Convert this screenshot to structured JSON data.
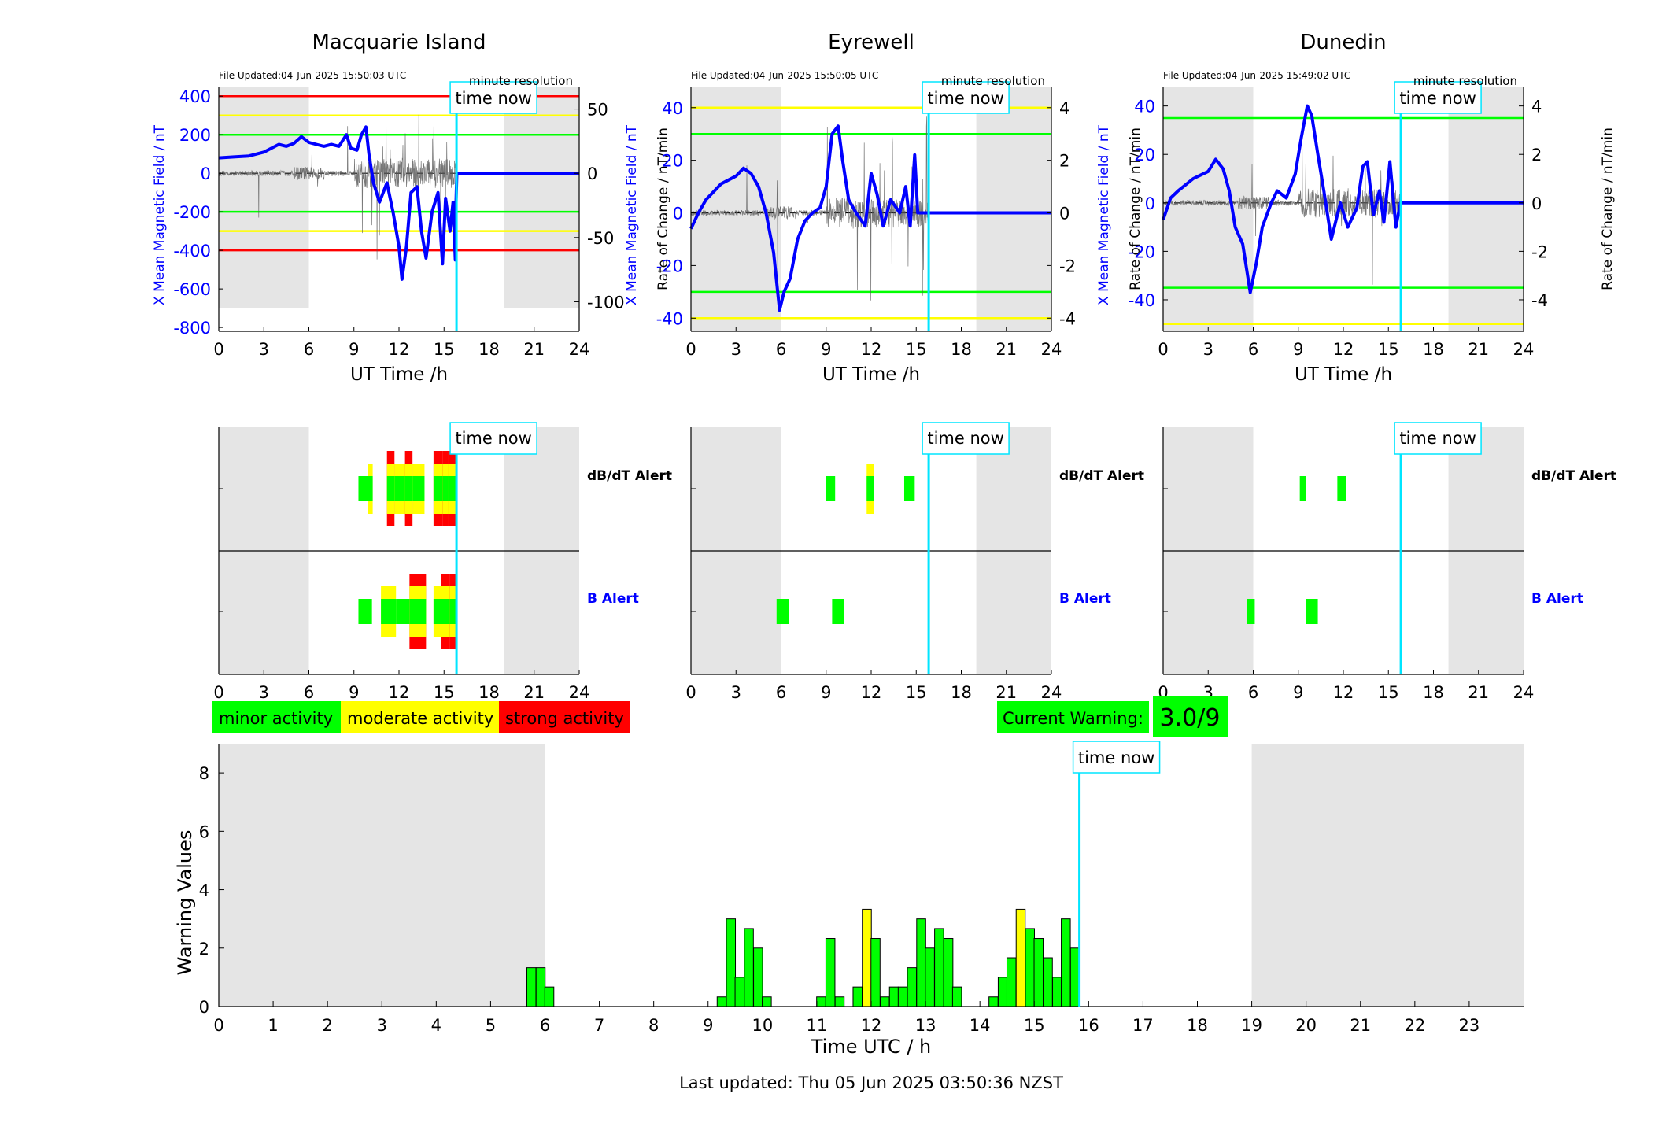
{
  "page": {
    "last_updated": "Last updated: Thu 05 Jun 2025 03:50:36 NZST",
    "time_now_label": "time now",
    "current_warning_label": "Current Warning:",
    "current_warning_value": "3.0/9"
  },
  "legend": [
    {
      "label": "minor activity",
      "color": "#00ff00"
    },
    {
      "label": "moderate activity",
      "color": "#ffff00"
    },
    {
      "label": "strong activity",
      "color": "#ff0000"
    }
  ],
  "colors": {
    "field": "#0000ff",
    "rate": "#555555",
    "now_line": "#00e5ff",
    "night_shade": "#e5e5e5",
    "green": "#00ff00",
    "yellow": "#ffff00",
    "red": "#ff0000"
  },
  "time_now_h": 15.83,
  "stations": [
    {
      "name": "Macquarie Island",
      "file_updated": "File Updated:04-Jun-2025 15:50:03 UTC",
      "resolution": "minute resolution",
      "ylabel_left": "X Mean Magnetic Field / nT",
      "ylabel_right": "Rate of Change / nT/min",
      "xlabel": "UT Time /h",
      "ylim": [
        -820,
        450
      ],
      "yticks": [
        -800,
        -600,
        -400,
        -200,
        0,
        200,
        400
      ],
      "y2lim": [
        -123,
        67.5
      ],
      "y2ticks": [
        -100,
        -50,
        0,
        50
      ],
      "night": [
        [
          0,
          6
        ],
        [
          19,
          24
        ]
      ],
      "night_range": [
        -700,
        450
      ],
      "thresholds": [
        {
          "y": 400,
          "color": "#ff0000"
        },
        {
          "y": 300,
          "color": "#ffff00"
        },
        {
          "y": 200,
          "color": "#00ff00"
        },
        {
          "y": -200,
          "color": "#00ff00"
        },
        {
          "y": -300,
          "color": "#ffff00"
        },
        {
          "y": -400,
          "color": "#ff0000"
        }
      ],
      "field": [
        [
          0,
          80
        ],
        [
          1,
          85
        ],
        [
          2,
          90
        ],
        [
          3,
          110
        ],
        [
          3.5,
          130
        ],
        [
          4,
          150
        ],
        [
          4.5,
          140
        ],
        [
          5,
          155
        ],
        [
          5.5,
          190
        ],
        [
          6,
          160
        ],
        [
          6.5,
          150
        ],
        [
          7,
          140
        ],
        [
          7.5,
          150
        ],
        [
          8,
          140
        ],
        [
          8.5,
          200
        ],
        [
          8.8,
          130
        ],
        [
          9.2,
          120
        ],
        [
          9.5,
          200
        ],
        [
          9.8,
          240
        ],
        [
          10,
          100
        ],
        [
          10.3,
          -50
        ],
        [
          10.7,
          -150
        ],
        [
          11.2,
          -50
        ],
        [
          11.6,
          -200
        ],
        [
          12,
          -380
        ],
        [
          12.2,
          -550
        ],
        [
          12.5,
          -380
        ],
        [
          12.8,
          -100
        ],
        [
          13.2,
          -70
        ],
        [
          13.5,
          -300
        ],
        [
          13.8,
          -440
        ],
        [
          14.2,
          -200
        ],
        [
          14.6,
          -100
        ],
        [
          14.9,
          -470
        ],
        [
          15.1,
          -130
        ],
        [
          15.4,
          -300
        ],
        [
          15.6,
          -150
        ],
        [
          15.75,
          -450
        ],
        [
          15.8,
          -150
        ],
        [
          15.85,
          0
        ],
        [
          24,
          0
        ]
      ],
      "dbdt_alerts": [
        {
          "from": 9.3,
          "to": 10.0,
          "level": 1
        },
        {
          "from": 9.95,
          "to": 10.25,
          "level": 2
        },
        {
          "from": 11.2,
          "to": 11.7,
          "level": 3
        },
        {
          "from": 11.7,
          "to": 12.4,
          "level": 2
        },
        {
          "from": 12.4,
          "to": 12.9,
          "level": 3
        },
        {
          "from": 12.9,
          "to": 13.7,
          "level": 2
        },
        {
          "from": 14.3,
          "to": 14.9,
          "level": 3
        },
        {
          "from": 14.9,
          "to": 15.3,
          "level": 3
        },
        {
          "from": 15.3,
          "to": 15.9,
          "level": 3
        }
      ],
      "b_alerts": [
        {
          "from": 9.3,
          "to": 10.2,
          "level": 1
        },
        {
          "from": 10.8,
          "to": 11.8,
          "level": 2
        },
        {
          "from": 11.8,
          "to": 12.7,
          "level": 1
        },
        {
          "from": 12.7,
          "to": 13.8,
          "level": 3
        },
        {
          "from": 14.3,
          "to": 14.8,
          "level": 2
        },
        {
          "from": 14.8,
          "to": 15.4,
          "level": 3
        },
        {
          "from": 15.4,
          "to": 15.9,
          "level": 3
        }
      ]
    },
    {
      "name": "Eyrewell",
      "file_updated": "File Updated:04-Jun-2025 15:50:05 UTC",
      "resolution": "minute resolution",
      "ylabel_left": "X Mean Magnetic Field / nT",
      "ylabel_right": "Rate of Change / nT/min",
      "xlabel": "UT Time /h",
      "ylim": [
        -45,
        48
      ],
      "yticks": [
        -40,
        -20,
        0,
        20,
        40
      ],
      "y2lim": [
        -4.5,
        4.8
      ],
      "y2ticks": [
        -4,
        -2,
        0,
        2,
        4
      ],
      "night": [
        [
          0,
          6
        ],
        [
          19,
          24
        ]
      ],
      "night_range": [
        -45,
        48
      ],
      "thresholds": [
        {
          "y": 40,
          "color": "#ffff00"
        },
        {
          "y": 30,
          "color": "#00ff00"
        },
        {
          "y": -30,
          "color": "#00ff00"
        },
        {
          "y": -40,
          "color": "#ffff00"
        }
      ],
      "field": [
        [
          0,
          -6
        ],
        [
          0.5,
          0
        ],
        [
          1,
          5
        ],
        [
          2,
          11
        ],
        [
          3,
          14
        ],
        [
          3.5,
          17
        ],
        [
          4,
          15
        ],
        [
          4.5,
          10
        ],
        [
          5,
          0
        ],
        [
          5.5,
          -15
        ],
        [
          5.9,
          -37
        ],
        [
          6.2,
          -30
        ],
        [
          6.6,
          -25
        ],
        [
          7.1,
          -10
        ],
        [
          7.6,
          -3
        ],
        [
          8.1,
          0
        ],
        [
          8.6,
          2
        ],
        [
          9.0,
          10
        ],
        [
          9.4,
          30
        ],
        [
          9.8,
          33
        ],
        [
          10.1,
          20
        ],
        [
          10.5,
          5
        ],
        [
          11.0,
          0
        ],
        [
          11.6,
          -5
        ],
        [
          12.0,
          15
        ],
        [
          12.4,
          7
        ],
        [
          12.8,
          -5
        ],
        [
          13.3,
          5
        ],
        [
          13.9,
          0
        ],
        [
          14.3,
          10
        ],
        [
          14.6,
          -5
        ],
        [
          14.9,
          22
        ],
        [
          15.1,
          0
        ],
        [
          24,
          0
        ]
      ],
      "dbdt_alerts": [
        {
          "from": 9.0,
          "to": 9.6,
          "level": 1
        },
        {
          "from": 11.7,
          "to": 12.2,
          "level": 2
        },
        {
          "from": 14.2,
          "to": 14.9,
          "level": 1
        }
      ],
      "b_alerts": [
        {
          "from": 5.7,
          "to": 6.5,
          "level": 1
        },
        {
          "from": 9.4,
          "to": 10.2,
          "level": 1
        }
      ]
    },
    {
      "name": "Dunedin",
      "file_updated": "File Updated:04-Jun-2025 15:49:02 UTC",
      "resolution": "minute resolution",
      "ylabel_left": "X Mean Magnetic Field / nT",
      "ylabel_right": "Rate of Change / nT/min",
      "xlabel": "UT Time /h",
      "ylim": [
        -53,
        48
      ],
      "yticks": [
        -40,
        -20,
        0,
        20,
        40
      ],
      "y2lim": [
        -5.3,
        4.8
      ],
      "y2ticks": [
        -4,
        -2,
        0,
        2,
        4
      ],
      "night": [
        [
          0,
          6
        ],
        [
          19,
          24
        ]
      ],
      "night_range": [
        -53,
        48
      ],
      "thresholds": [
        {
          "y": 35,
          "color": "#00ff00"
        },
        {
          "y": -35,
          "color": "#00ff00"
        },
        {
          "y": -50,
          "color": "#ffff00"
        }
      ],
      "field": [
        [
          0,
          -7
        ],
        [
          0.5,
          2
        ],
        [
          1,
          5
        ],
        [
          2,
          10
        ],
        [
          3,
          13
        ],
        [
          3.5,
          18
        ],
        [
          4,
          14
        ],
        [
          4.4,
          5
        ],
        [
          4.8,
          -10
        ],
        [
          5.3,
          -17
        ],
        [
          5.8,
          -37
        ],
        [
          6.2,
          -25
        ],
        [
          6.6,
          -10
        ],
        [
          7.2,
          0
        ],
        [
          7.6,
          5
        ],
        [
          8.2,
          2
        ],
        [
          8.8,
          12
        ],
        [
          9.2,
          27
        ],
        [
          9.6,
          40
        ],
        [
          9.9,
          36
        ],
        [
          10.3,
          20
        ],
        [
          10.7,
          5
        ],
        [
          11.2,
          -15
        ],
        [
          11.8,
          0
        ],
        [
          12.3,
          -10
        ],
        [
          12.9,
          -2
        ],
        [
          13.3,
          15
        ],
        [
          13.6,
          17
        ],
        [
          14.0,
          -5
        ],
        [
          14.4,
          5
        ],
        [
          14.7,
          -8
        ],
        [
          15.1,
          17
        ],
        [
          15.5,
          -10
        ],
        [
          15.8,
          0
        ],
        [
          24,
          0
        ]
      ],
      "dbdt_alerts": [
        {
          "from": 9.1,
          "to": 9.5,
          "level": 1
        },
        {
          "from": 11.6,
          "to": 12.2,
          "level": 1
        }
      ],
      "b_alerts": [
        {
          "from": 5.6,
          "to": 6.1,
          "level": 1
        },
        {
          "from": 9.5,
          "to": 10.3,
          "level": 1
        }
      ]
    }
  ],
  "alert_labels": {
    "dbdt": "dB/dT Alert",
    "b": "B Alert"
  },
  "chart_data": {
    "type": "bar",
    "title": "",
    "xlabel": "Time UTC / h",
    "ylabel": "Warning Values",
    "xlim": [
      0,
      24
    ],
    "ylim": [
      0,
      9
    ],
    "xticks": [
      0,
      1,
      2,
      3,
      4,
      5,
      6,
      7,
      8,
      9,
      10,
      11,
      12,
      13,
      14,
      15,
      16,
      17,
      18,
      19,
      20,
      21,
      22,
      23
    ],
    "yticks": [
      0,
      2,
      4,
      6,
      8
    ],
    "night": [
      [
        0,
        6
      ],
      [
        19,
        24
      ]
    ],
    "bar_width_h": 0.1667,
    "bars": [
      {
        "t": 5.75,
        "v": 1.33,
        "c": "g"
      },
      {
        "t": 5.92,
        "v": 1.33,
        "c": "g"
      },
      {
        "t": 6.08,
        "v": 0.67,
        "c": "g"
      },
      {
        "t": 9.25,
        "v": 0.33,
        "c": "g"
      },
      {
        "t": 9.42,
        "v": 3.0,
        "c": "g"
      },
      {
        "t": 9.58,
        "v": 1.0,
        "c": "g"
      },
      {
        "t": 9.75,
        "v": 2.67,
        "c": "g"
      },
      {
        "t": 9.92,
        "v": 2.0,
        "c": "g"
      },
      {
        "t": 10.08,
        "v": 0.33,
        "c": "g"
      },
      {
        "t": 11.08,
        "v": 0.33,
        "c": "g"
      },
      {
        "t": 11.25,
        "v": 2.33,
        "c": "g"
      },
      {
        "t": 11.42,
        "v": 0.33,
        "c": "g"
      },
      {
        "t": 11.75,
        "v": 0.67,
        "c": "g"
      },
      {
        "t": 11.92,
        "v": 3.33,
        "c": "y"
      },
      {
        "t": 12.08,
        "v": 2.33,
        "c": "g"
      },
      {
        "t": 12.25,
        "v": 0.33,
        "c": "g"
      },
      {
        "t": 12.42,
        "v": 0.67,
        "c": "g"
      },
      {
        "t": 12.58,
        "v": 0.67,
        "c": "g"
      },
      {
        "t": 12.75,
        "v": 1.33,
        "c": "g"
      },
      {
        "t": 12.92,
        "v": 3.0,
        "c": "g"
      },
      {
        "t": 13.08,
        "v": 2.0,
        "c": "g"
      },
      {
        "t": 13.25,
        "v": 2.67,
        "c": "g"
      },
      {
        "t": 13.42,
        "v": 2.33,
        "c": "g"
      },
      {
        "t": 13.58,
        "v": 0.67,
        "c": "g"
      },
      {
        "t": 14.25,
        "v": 0.33,
        "c": "g"
      },
      {
        "t": 14.42,
        "v": 1.0,
        "c": "g"
      },
      {
        "t": 14.58,
        "v": 1.67,
        "c": "g"
      },
      {
        "t": 14.75,
        "v": 3.33,
        "c": "y"
      },
      {
        "t": 14.92,
        "v": 2.67,
        "c": "g"
      },
      {
        "t": 15.08,
        "v": 2.33,
        "c": "g"
      },
      {
        "t": 15.25,
        "v": 1.67,
        "c": "g"
      },
      {
        "t": 15.42,
        "v": 1.0,
        "c": "g"
      },
      {
        "t": 15.58,
        "v": 3.0,
        "c": "g"
      },
      {
        "t": 15.75,
        "v": 2.0,
        "c": "g"
      }
    ]
  }
}
